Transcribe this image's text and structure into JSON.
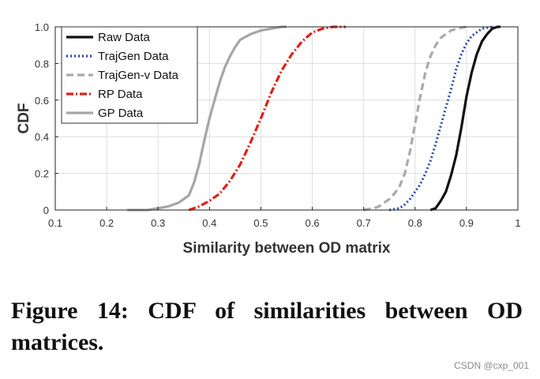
{
  "chart_data": {
    "type": "line",
    "title": "",
    "xlabel": "Similarity between OD matrix",
    "ylabel": "CDF",
    "xlim": [
      0.1,
      1.0
    ],
    "ylim": [
      0,
      1.0
    ],
    "xticks": [
      "0.1",
      "0.2",
      "0.3",
      "0.4",
      "0.5",
      "0.6",
      "0.7",
      "0.8",
      "0.9",
      "1"
    ],
    "yticks": [
      "0",
      "0.2",
      "0.4",
      "0.6",
      "0.8",
      "1.0"
    ],
    "legend_position": "top-left",
    "series": [
      {
        "name": "Raw Data",
        "style": "solid",
        "color": "#111111",
        "x": [
          0.83,
          0.84,
          0.85,
          0.86,
          0.87,
          0.88,
          0.89,
          0.9,
          0.91,
          0.92,
          0.93,
          0.94,
          0.95,
          0.96,
          0.966
        ],
        "y": [
          0.0,
          0.01,
          0.05,
          0.1,
          0.19,
          0.3,
          0.45,
          0.62,
          0.75,
          0.85,
          0.92,
          0.96,
          0.99,
          1.0,
          1.0
        ]
      },
      {
        "name": "TrajGen Data",
        "style": "dotted",
        "color": "#2a44b0",
        "x": [
          0.75,
          0.77,
          0.78,
          0.79,
          0.8,
          0.81,
          0.82,
          0.83,
          0.84,
          0.85,
          0.86,
          0.87,
          0.88,
          0.89,
          0.9,
          0.91,
          0.92,
          0.93,
          0.95
        ],
        "y": [
          0.0,
          0.01,
          0.03,
          0.06,
          0.1,
          0.14,
          0.2,
          0.27,
          0.36,
          0.46,
          0.56,
          0.66,
          0.77,
          0.85,
          0.91,
          0.95,
          0.97,
          0.99,
          1.0
        ]
      },
      {
        "name": "TrajGen-v Data",
        "style": "dashed",
        "color": "#aaaaaa",
        "x": [
          0.7,
          0.72,
          0.73,
          0.74,
          0.75,
          0.76,
          0.77,
          0.78,
          0.79,
          0.8,
          0.81,
          0.82,
          0.83,
          0.84,
          0.85,
          0.86,
          0.87,
          0.88,
          0.9
        ],
        "y": [
          0.0,
          0.01,
          0.02,
          0.04,
          0.06,
          0.09,
          0.13,
          0.2,
          0.32,
          0.47,
          0.62,
          0.75,
          0.84,
          0.9,
          0.94,
          0.96,
          0.98,
          0.99,
          1.0
        ]
      },
      {
        "name": "RP Data",
        "style": "dashdot",
        "color": "#e0201a",
        "x": [
          0.36,
          0.38,
          0.4,
          0.42,
          0.44,
          0.46,
          0.48,
          0.5,
          0.52,
          0.54,
          0.56,
          0.58,
          0.6,
          0.62,
          0.64,
          0.665
        ],
        "y": [
          0.0,
          0.02,
          0.05,
          0.09,
          0.16,
          0.25,
          0.37,
          0.5,
          0.64,
          0.76,
          0.85,
          0.92,
          0.97,
          0.99,
          1.0,
          1.0
        ]
      },
      {
        "name": "GP Data",
        "style": "solid",
        "color": "#a6a6a6",
        "x": [
          0.24,
          0.28,
          0.32,
          0.34,
          0.36,
          0.37,
          0.38,
          0.39,
          0.4,
          0.41,
          0.42,
          0.43,
          0.44,
          0.45,
          0.46,
          0.48,
          0.5,
          0.52,
          0.54,
          0.55
        ],
        "y": [
          0.0,
          0.0,
          0.02,
          0.04,
          0.08,
          0.15,
          0.25,
          0.38,
          0.5,
          0.6,
          0.7,
          0.78,
          0.84,
          0.89,
          0.93,
          0.96,
          0.98,
          0.99,
          1.0,
          1.0
        ]
      }
    ]
  },
  "caption": "Figure 14: CDF of similarities between OD matrices.",
  "watermark": "CSDN @cxp_001"
}
